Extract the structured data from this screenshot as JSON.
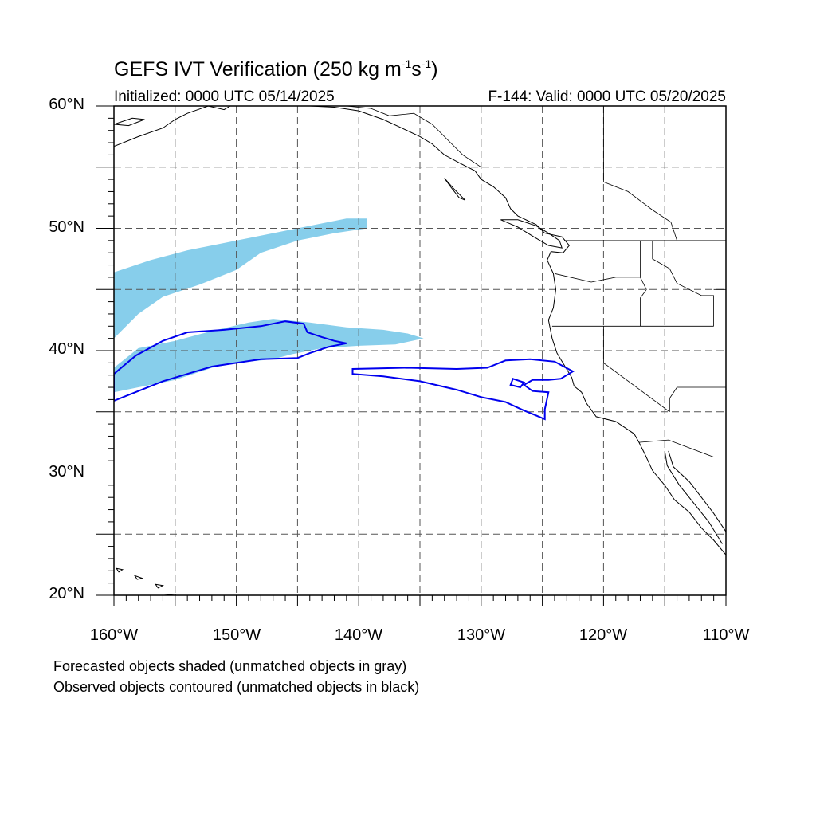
{
  "title": {
    "main": "GEFS IVT Verification (250 kg m",
    "exp1": "-1",
    "mid": "s",
    "exp2": "-1",
    "close": ")"
  },
  "subtitle": {
    "initialized": "Initialized: 0000 UTC 05/14/2025",
    "valid": "F-144: Valid: 0000 UTC 05/20/2025"
  },
  "axes": {
    "lon_range": [
      -160,
      -110
    ],
    "lat_range": [
      20,
      60
    ],
    "lat_labels": [
      "60°N",
      "50°N",
      "40°N",
      "30°N",
      "20°N"
    ],
    "lon_labels": [
      "160°W",
      "150°W",
      "140°W",
      "130°W",
      "120°W",
      "110°W"
    ],
    "grid": "dashed, every 5 degrees"
  },
  "legend": {
    "line1": "Forecasted objects shaded (unmatched objects in gray)",
    "line2": "Observed objects contoured (unmatched objects in black)"
  },
  "colors": {
    "forecast_fill": "#87ceeb",
    "observed_contour": "#0000ee",
    "coastline": "#000000",
    "grid": "#555555"
  },
  "forecast_objects": [
    {
      "name": "forecast-object-north",
      "points": [
        [
          -160,
          41
        ],
        [
          -160,
          46.4
        ],
        [
          -157,
          47.4
        ],
        [
          -154,
          48.2
        ],
        [
          -150,
          49
        ],
        [
          -147,
          49.6
        ],
        [
          -144,
          50.2
        ],
        [
          -141,
          50.8
        ],
        [
          -139.3,
          50.8
        ],
        [
          -139.3,
          50
        ],
        [
          -142,
          49.6
        ],
        [
          -145,
          49
        ],
        [
          -148,
          48
        ],
        [
          -150,
          46.6
        ],
        [
          -153,
          45.4
        ],
        [
          -156,
          44.4
        ],
        [
          -158,
          43
        ],
        [
          -160,
          41
        ]
      ]
    },
    {
      "name": "forecast-object-south",
      "points": [
        [
          -160,
          36.6
        ],
        [
          -160,
          38.6
        ],
        [
          -158,
          40.2
        ],
        [
          -155,
          40.8
        ],
        [
          -152,
          41.6
        ],
        [
          -149,
          42.3
        ],
        [
          -147,
          42.6
        ],
        [
          -144,
          42.3
        ],
        [
          -141,
          41.9
        ],
        [
          -138,
          41.7
        ],
        [
          -136,
          41.4
        ],
        [
          -134.7,
          41
        ],
        [
          -137,
          40.5
        ],
        [
          -140,
          40.4
        ],
        [
          -143,
          40.2
        ],
        [
          -145.5,
          39.7
        ],
        [
          -147,
          39.3
        ],
        [
          -150,
          39
        ],
        [
          -152,
          38.6
        ],
        [
          -155,
          37.6
        ],
        [
          -158,
          37
        ],
        [
          -160,
          36.6
        ]
      ]
    }
  ],
  "observed_objects": [
    {
      "name": "observed-contour-west",
      "points": [
        [
          -160,
          35.9
        ],
        [
          -160,
          38.1
        ],
        [
          -158.2,
          39.6
        ],
        [
          -156,
          40.8
        ],
        [
          -154,
          41.5
        ],
        [
          -151,
          41.7
        ],
        [
          -148,
          42
        ],
        [
          -146,
          42.4
        ],
        [
          -144.5,
          42.2
        ],
        [
          -144.2,
          41.5
        ],
        [
          -143,
          41.1
        ],
        [
          -142,
          40.8
        ],
        [
          -141,
          40.6
        ],
        [
          -142.5,
          40.3
        ],
        [
          -144,
          39.8
        ],
        [
          -145,
          39.4
        ],
        [
          -148,
          39.3
        ],
        [
          -150,
          39
        ],
        [
          -152,
          38.7
        ],
        [
          -154,
          38.1
        ],
        [
          -156,
          37.5
        ],
        [
          -158,
          36.7
        ],
        [
          -160,
          35.9
        ]
      ]
    },
    {
      "name": "observed-contour-east",
      "points": [
        [
          -140.5,
          38.1
        ],
        [
          -140.5,
          38.5
        ],
        [
          -136,
          38.6
        ],
        [
          -132,
          38.5
        ],
        [
          -129.5,
          38.6
        ],
        [
          -128,
          39.2
        ],
        [
          -126,
          39.3
        ],
        [
          -124,
          39.1
        ],
        [
          -122.5,
          38.3
        ],
        [
          -123.5,
          37.7
        ],
        [
          -124.5,
          37.6
        ],
        [
          -125.8,
          37.6
        ],
        [
          -126.5,
          37.2
        ],
        [
          -125.8,
          36.7
        ],
        [
          -124.5,
          36.6
        ],
        [
          -124.8,
          35.2
        ],
        [
          -124.8,
          34.4
        ],
        [
          -125.5,
          34.7
        ],
        [
          -126.5,
          35.1
        ],
        [
          -128,
          35.8
        ],
        [
          -130,
          36.2
        ],
        [
          -132,
          36.8
        ],
        [
          -135,
          37.5
        ],
        [
          -138,
          37.9
        ],
        [
          -140.5,
          38.1
        ]
      ]
    },
    {
      "name": "observed-contour-east-hole",
      "points": [
        [
          -127.4,
          37.7
        ],
        [
          -126.5,
          37.4
        ],
        [
          -126.8,
          37
        ],
        [
          -127.6,
          37.2
        ],
        [
          -127.4,
          37.7
        ]
      ]
    }
  ],
  "coastlines": [
    {
      "name": "alaska-coast",
      "points": [
        [
          -160,
          56.7
        ],
        [
          -158,
          57.5
        ],
        [
          -156,
          58.2
        ],
        [
          -155,
          58.9
        ],
        [
          -154,
          59.4
        ],
        [
          -152.3,
          60
        ],
        [
          -151,
          59.7
        ],
        [
          -150.5,
          60
        ],
        [
          -148,
          60
        ],
        [
          -146,
          60
        ],
        [
          -144,
          60
        ],
        [
          -142,
          59.9
        ],
        [
          -140,
          59.6
        ],
        [
          -138,
          58.9
        ],
        [
          -136.5,
          58.2
        ],
        [
          -135,
          57.5
        ],
        [
          -134,
          56.9
        ],
        [
          -133,
          56
        ],
        [
          -131.7,
          55.3
        ],
        [
          -130.5,
          54.7
        ],
        [
          -130,
          54
        ],
        [
          -129,
          53.4
        ],
        [
          -128,
          52.5
        ],
        [
          -127.6,
          51.6
        ],
        [
          -127,
          51
        ],
        [
          -125.5,
          50.3
        ],
        [
          -124.8,
          49.6
        ],
        [
          -123.4,
          49.3
        ],
        [
          -122.8,
          48.6
        ],
        [
          -123.3,
          48
        ],
        [
          -124.3,
          48.1
        ],
        [
          -124.6,
          47.4
        ],
        [
          -124.1,
          46.3
        ],
        [
          -123.9,
          45
        ],
        [
          -124.1,
          43.5
        ],
        [
          -124.5,
          42.5
        ],
        [
          -124.2,
          41
        ],
        [
          -123.8,
          39.8
        ],
        [
          -123.2,
          38.8
        ],
        [
          -122.6,
          37.8
        ],
        [
          -122.4,
          37.1
        ],
        [
          -121.8,
          36.6
        ],
        [
          -121.4,
          35.7
        ],
        [
          -120.6,
          34.6
        ],
        [
          -119,
          34.2
        ],
        [
          -117.5,
          33.2
        ],
        [
          -117.1,
          32.5
        ],
        [
          -116.6,
          31.5
        ],
        [
          -116,
          30.2
        ],
        [
          -115,
          29
        ],
        [
          -114.2,
          27.8
        ],
        [
          -113,
          26.8
        ],
        [
          -112,
          25.5
        ],
        [
          -111,
          24.5
        ],
        [
          -110,
          23.3
        ]
      ]
    },
    {
      "name": "vancouver-island",
      "points": [
        [
          -128.4,
          50.7
        ],
        [
          -127,
          50.1
        ],
        [
          -125.7,
          49.3
        ],
        [
          -124.5,
          48.6
        ],
        [
          -123.4,
          48.4
        ],
        [
          -123.6,
          49
        ],
        [
          -124.5,
          49.6
        ],
        [
          -125.5,
          50.2
        ],
        [
          -127,
          50.7
        ],
        [
          -128.4,
          50.7
        ]
      ]
    },
    {
      "name": "haida-gwaii",
      "points": [
        [
          -133,
          54.1
        ],
        [
          -132.2,
          53.2
        ],
        [
          -131.3,
          52.3
        ],
        [
          -131.8,
          52.5
        ],
        [
          -132.5,
          53.4
        ],
        [
          -133,
          54.1
        ]
      ]
    },
    {
      "name": "gulf-of-california-coast",
      "points": [
        [
          -114.7,
          31.8
        ],
        [
          -114.3,
          30.5
        ],
        [
          -113,
          29.3
        ],
        [
          -112,
          28
        ],
        [
          -111,
          26.7
        ],
        [
          -110,
          25.2
        ]
      ]
    },
    {
      "name": "baja-inner-coast",
      "points": [
        [
          -115,
          31.8
        ],
        [
          -114.8,
          30.6
        ],
        [
          -113.8,
          29
        ],
        [
          -112.6,
          27.5
        ],
        [
          -111.4,
          26
        ],
        [
          -110.3,
          24.2
        ]
      ]
    },
    {
      "name": "hawaii-big-island",
      "points": [
        [
          -155.9,
          20
        ],
        [
          -155,
          20.1
        ],
        [
          -154.8,
          19.6
        ],
        [
          -155.5,
          19.5
        ],
        [
          -155.9,
          20
        ]
      ]
    },
    {
      "name": "hawaii-maui",
      "points": [
        [
          -156.6,
          20.9
        ],
        [
          -156,
          20.8
        ],
        [
          -156.4,
          20.6
        ],
        [
          -156.6,
          20.9
        ]
      ]
    },
    {
      "name": "hawaii-oahu",
      "points": [
        [
          -158.3,
          21.6
        ],
        [
          -157.7,
          21.4
        ],
        [
          -158.1,
          21.3
        ],
        [
          -158.3,
          21.6
        ]
      ]
    },
    {
      "name": "hawaii-kauai",
      "points": [
        [
          -159.8,
          22.2
        ],
        [
          -159.3,
          22.1
        ],
        [
          -159.6,
          21.9
        ],
        [
          -159.8,
          22.2
        ]
      ]
    },
    {
      "name": "alaska-corner-islands",
      "points": [
        [
          -160,
          58.5
        ],
        [
          -158.5,
          59
        ],
        [
          -157.5,
          58.9
        ],
        [
          -158.8,
          58.4
        ],
        [
          -160,
          58.5
        ]
      ]
    }
  ],
  "borders": [
    {
      "name": "us-canada-border",
      "points": [
        [
          -123.2,
          49
        ],
        [
          -110,
          49
        ]
      ]
    },
    {
      "name": "alaska-canada-border",
      "points": [
        [
          -141,
          60
        ],
        [
          -139,
          59.8
        ],
        [
          -137.5,
          59.2
        ],
        [
          -135.5,
          59.4
        ],
        [
          -134,
          58.5
        ],
        [
          -133,
          57.5
        ],
        [
          -131.5,
          56
        ],
        [
          -130,
          55
        ]
      ]
    },
    {
      "name": "washington-oregon-border",
      "points": [
        [
          -124,
          46.3
        ],
        [
          -121,
          45.6
        ],
        [
          -119,
          46
        ],
        [
          -117,
          46
        ]
      ]
    },
    {
      "name": "washington-idaho-border",
      "points": [
        [
          -117,
          49
        ],
        [
          -117,
          46
        ]
      ]
    },
    {
      "name": "oregon-idaho-border",
      "points": [
        [
          -117,
          46
        ],
        [
          -116.5,
          45
        ],
        [
          -117,
          44.3
        ],
        [
          -117,
          42
        ]
      ]
    },
    {
      "name": "oregon-california-border",
      "points": [
        [
          -124.2,
          42
        ],
        [
          -117,
          42
        ],
        [
          -111,
          42
        ]
      ]
    },
    {
      "name": "california-nevada-border",
      "points": [
        [
          -120,
          42
        ],
        [
          -120,
          39
        ],
        [
          -114.6,
          35
        ]
      ]
    },
    {
      "name": "nevada-utah-border",
      "points": [
        [
          -114,
          42
        ],
        [
          -114,
          37
        ],
        [
          -114.6,
          36.1
        ],
        [
          -114.6,
          35
        ]
      ]
    },
    {
      "name": "idaho-montana-border",
      "points": [
        [
          -116,
          49
        ],
        [
          -116,
          47.5
        ],
        [
          -114.6,
          46.7
        ],
        [
          -114,
          45.5
        ],
        [
          -112,
          44.5
        ],
        [
          -111,
          44.5
        ],
        [
          -111,
          42
        ]
      ]
    },
    {
      "name": "wyoming-border",
      "points": [
        [
          -111,
          45
        ],
        [
          -110,
          45
        ]
      ]
    },
    {
      "name": "arizona-utah-border",
      "points": [
        [
          -114,
          37
        ],
        [
          -110,
          37
        ]
      ]
    },
    {
      "name": "us-mexico-border",
      "points": [
        [
          -117.1,
          32.5
        ],
        [
          -114.7,
          32.7
        ],
        [
          -111,
          31.3
        ],
        [
          -110,
          31.3
        ]
      ]
    },
    {
      "name": "canada-bc-alberta-line",
      "points": [
        [
          -120,
          60
        ],
        [
          -120,
          53.8
        ],
        [
          -118,
          53
        ],
        [
          -116,
          51.5
        ],
        [
          -114.5,
          50.5
        ],
        [
          -114,
          49
        ]
      ]
    }
  ]
}
